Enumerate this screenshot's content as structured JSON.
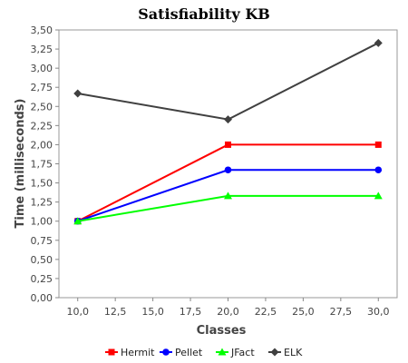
{
  "chart_data": {
    "type": "line",
    "title": "Satisfiability KB",
    "xlabel": "Classes",
    "ylabel": "Time (milliseconds)",
    "x": [
      10,
      20,
      30
    ],
    "xlim": [
      8.75,
      31.25
    ],
    "ylim": [
      0,
      3.5
    ],
    "xticks": [
      10,
      12.5,
      15,
      17.5,
      20,
      22.5,
      25,
      27.5,
      30
    ],
    "xtick_labels": [
      "10,0",
      "12,5",
      "15,0",
      "17,5",
      "20,0",
      "22,5",
      "25,0",
      "27,5",
      "30,0"
    ],
    "yticks": [
      0,
      0.25,
      0.5,
      0.75,
      1.0,
      1.25,
      1.5,
      1.75,
      2.0,
      2.25,
      2.5,
      2.75,
      3.0,
      3.25,
      3.5
    ],
    "ytick_labels": [
      "0,00",
      "0,25",
      "0,50",
      "0,75",
      "1,00",
      "1,25",
      "1,50",
      "1,75",
      "2,00",
      "2,25",
      "2,50",
      "2,75",
      "3,00",
      "3,25",
      "3,50"
    ],
    "grid": false,
    "legend_position": "bottom",
    "series": [
      {
        "name": "Hermit",
        "color": "#ff0000",
        "marker": "square",
        "values": [
          1.0,
          2.0,
          2.0
        ]
      },
      {
        "name": "Pellet",
        "color": "#0000ff",
        "marker": "circle",
        "values": [
          1.0,
          1.67,
          1.67
        ]
      },
      {
        "name": "JFact",
        "color": "#00ff00",
        "marker": "triangle",
        "values": [
          1.0,
          1.33,
          1.33
        ]
      },
      {
        "name": "ELK",
        "color": "#404040",
        "marker": "diamond",
        "values": [
          2.67,
          2.33,
          3.33
        ]
      }
    ]
  }
}
